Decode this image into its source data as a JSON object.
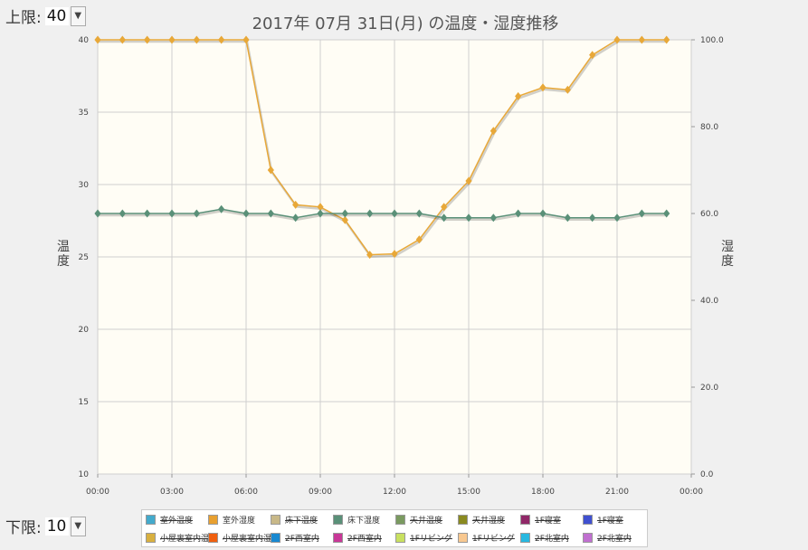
{
  "controls": {
    "upper": {
      "label": "上限:",
      "value": "40"
    },
    "lower": {
      "label": "下限:",
      "value": "10"
    }
  },
  "chart_data": {
    "type": "line",
    "title": "2017年 07月 31日(月) の温度・湿度推移",
    "ylabel_left": "温度",
    "ylabel_right": "湿度",
    "x_ticks": [
      "00:00",
      "03:00",
      "06:00",
      "09:00",
      "12:00",
      "15:00",
      "18:00",
      "21:00",
      "00:00"
    ],
    "ylim_left": [
      10,
      40
    ],
    "yticks_left": [
      "10",
      "15",
      "20",
      "25",
      "30",
      "35",
      "40"
    ],
    "ylim_right": [
      0,
      100
    ],
    "yticks_right": [
      "0.0",
      "20.0",
      "40.0",
      "60.0",
      "80.0",
      "100.0"
    ],
    "grid": true,
    "x": [
      "00:00",
      "01:00",
      "02:00",
      "03:00",
      "04:00",
      "05:00",
      "06:00",
      "07:00",
      "08:00",
      "09:00",
      "10:00",
      "11:00",
      "12:00",
      "13:00",
      "14:00",
      "15:00",
      "16:00",
      "17:00",
      "18:00",
      "19:00",
      "20:00",
      "21:00",
      "22:00",
      "23:00"
    ],
    "series": [
      {
        "name": "室外湿度",
        "axis": "right",
        "color": "#e8a838",
        "values": [
          100,
          100,
          100,
          100,
          100,
          100,
          100,
          70,
          62,
          61.5,
          58.5,
          50.5,
          50.7,
          54,
          61.5,
          67.5,
          79,
          87,
          89,
          88.5,
          96.5,
          100,
          100,
          100
        ]
      },
      {
        "name": "床下湿度",
        "axis": "right",
        "color": "#5a9078",
        "values": [
          60,
          60,
          60,
          60,
          60,
          61,
          60,
          60,
          59,
          60,
          60,
          60,
          60,
          60,
          59,
          59,
          59,
          60,
          60,
          59,
          59,
          59,
          60,
          60
        ]
      }
    ],
    "legend": [
      {
        "name": "室外温度",
        "color": "#44aacc",
        "on": false
      },
      {
        "name": "室外湿度",
        "color": "#e8a030",
        "on": true
      },
      {
        "name": "床下温度",
        "color": "#c8b888",
        "on": false
      },
      {
        "name": "床下湿度",
        "color": "#5a9078",
        "on": true
      },
      {
        "name": "天井温度",
        "color": "#7a9a60",
        "on": false
      },
      {
        "name": "天井湿度",
        "color": "#8a8a20",
        "on": false
      },
      {
        "name": "1F寝室",
        "color": "#902868",
        "on": false
      },
      {
        "name": "1F寝室",
        "color": "#4050d0",
        "on": false
      },
      {
        "name": "小屋裏室内温度",
        "color": "#d8b040",
        "on": false
      },
      {
        "name": "小屋裏室内湿度",
        "color": "#f06010",
        "on": false
      },
      {
        "name": "2F西室内",
        "color": "#1888d0",
        "on": false
      },
      {
        "name": "2F西室内",
        "color": "#c83898",
        "on": false
      },
      {
        "name": "1Fリビング",
        "color": "#c8e060",
        "on": false
      },
      {
        "name": "1Fリビング",
        "color": "#f8c890",
        "on": false
      },
      {
        "name": "2F北室内",
        "color": "#28b8e0",
        "on": false
      },
      {
        "name": "2F北室内",
        "color": "#c070d0",
        "on": false
      }
    ]
  }
}
